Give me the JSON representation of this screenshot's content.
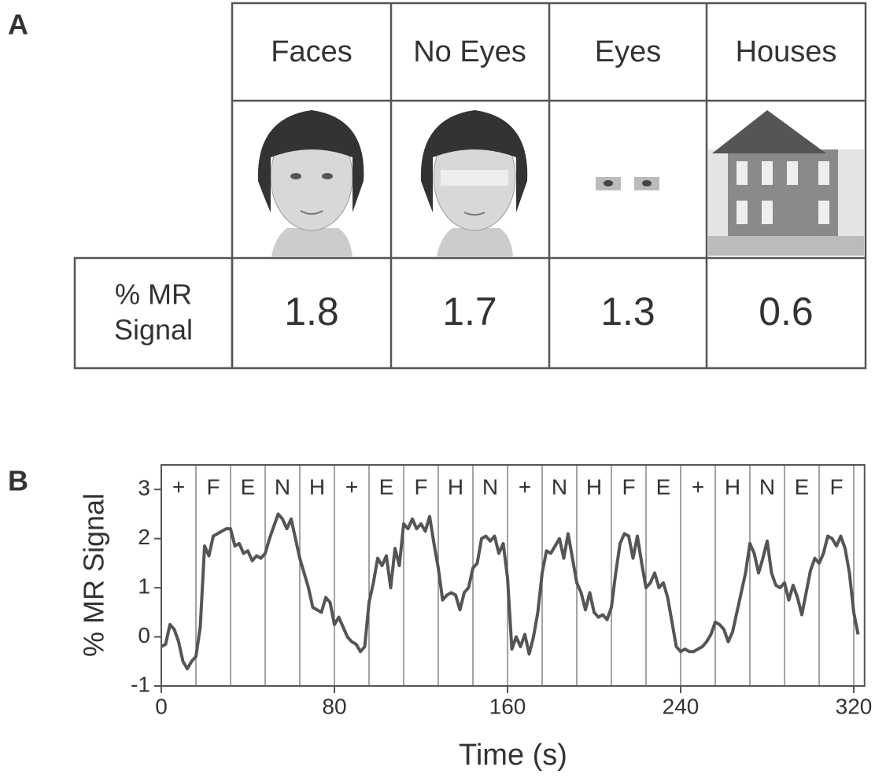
{
  "panel_a": {
    "label": "A",
    "columns": [
      "Faces",
      "No Eyes",
      "Eyes",
      "Houses"
    ],
    "row_label": [
      "% MR",
      "Signal"
    ],
    "values": [
      "1.8",
      "1.7",
      "1.3",
      "0.6"
    ]
  },
  "chart_data": {
    "type": "line",
    "label": "B",
    "xlabel": "Time (s)",
    "ylabel": "% MR Signal",
    "xlim": [
      0,
      325
    ],
    "ylim": [
      -1,
      3.5
    ],
    "xticks": [
      0,
      80,
      160,
      240,
      320
    ],
    "yticks": [
      3,
      2,
      1,
      0,
      -1
    ],
    "block_labels": [
      "+",
      "F",
      "E",
      "N",
      "H",
      "+",
      "E",
      "F",
      "H",
      "N",
      "+",
      "N",
      "H",
      "F",
      "E",
      "+",
      "H",
      "N",
      "E",
      "F"
    ],
    "block_edges": [
      16,
      32,
      48,
      64,
      80,
      96,
      112,
      128,
      144,
      160,
      176,
      192,
      208,
      224,
      240,
      256,
      272,
      288,
      304,
      320
    ],
    "x": [
      0,
      2,
      4,
      6,
      8,
      10,
      12,
      14,
      16,
      18,
      20,
      22,
      24,
      26,
      28,
      30,
      32,
      34,
      36,
      38,
      40,
      42,
      44,
      46,
      48,
      50,
      52,
      54,
      56,
      58,
      60,
      62,
      64,
      66,
      68,
      70,
      72,
      74,
      76,
      78,
      80,
      82,
      84,
      86,
      88,
      90,
      92,
      94,
      96,
      98,
      100,
      102,
      104,
      106,
      108,
      110,
      112,
      114,
      116,
      118,
      120,
      122,
      124,
      126,
      128,
      130,
      132,
      134,
      136,
      138,
      140,
      142,
      144,
      146,
      148,
      150,
      152,
      154,
      156,
      158,
      160,
      162,
      164,
      166,
      168,
      170,
      172,
      174,
      176,
      178,
      180,
      182,
      184,
      186,
      188,
      190,
      192,
      194,
      196,
      198,
      200,
      202,
      204,
      206,
      208,
      210,
      212,
      214,
      216,
      218,
      220,
      222,
      224,
      226,
      228,
      230,
      232,
      234,
      236,
      238,
      240,
      242,
      244,
      246,
      248,
      250,
      252,
      254,
      256,
      258,
      260,
      262,
      264,
      266,
      268,
      270,
      272,
      274,
      276,
      278,
      280,
      282,
      284,
      286,
      288,
      290,
      292,
      294,
      296,
      298,
      300,
      302,
      304,
      306,
      308,
      310,
      312,
      314,
      316,
      318,
      320,
      322
    ],
    "series": [
      {
        "color": "#555555",
        "values": [
          -0.2,
          -0.15,
          0.25,
          0.15,
          -0.1,
          -0.5,
          -0.65,
          -0.5,
          -0.4,
          0.2,
          1.85,
          1.65,
          2.05,
          2.1,
          2.15,
          2.2,
          2.2,
          1.85,
          1.9,
          1.7,
          1.75,
          1.55,
          1.65,
          1.6,
          1.7,
          2.0,
          2.25,
          2.5,
          2.4,
          2.2,
          2.4,
          2.0,
          1.6,
          1.3,
          1.0,
          0.6,
          0.55,
          0.5,
          0.8,
          0.7,
          0.25,
          0.4,
          0.2,
          0.0,
          -0.1,
          -0.15,
          -0.3,
          -0.2,
          0.7,
          1.1,
          1.6,
          1.45,
          1.65,
          1.0,
          1.8,
          1.45,
          2.3,
          2.2,
          2.4,
          2.2,
          2.3,
          2.15,
          2.45,
          1.9,
          1.4,
          0.75,
          0.85,
          0.9,
          0.85,
          0.55,
          0.9,
          1.0,
          1.4,
          1.5,
          2.0,
          2.05,
          1.95,
          2.05,
          1.7,
          1.9,
          1.2,
          -0.25,
          0.0,
          -0.2,
          0.05,
          -0.35,
          0.0,
          0.5,
          1.3,
          1.75,
          1.7,
          1.85,
          2.0,
          1.6,
          2.1,
          1.6,
          1.1,
          0.9,
          0.55,
          0.9,
          0.5,
          0.4,
          0.45,
          0.35,
          0.6,
          1.3,
          1.9,
          2.1,
          2.05,
          1.6,
          2.05,
          1.5,
          1.0,
          1.1,
          1.3,
          1.0,
          1.1,
          0.8,
          0.3,
          -0.2,
          -0.3,
          -0.25,
          -0.3,
          -0.3,
          -0.25,
          -0.2,
          -0.1,
          0.05,
          0.3,
          0.25,
          0.15,
          -0.1,
          0.1,
          0.5,
          0.9,
          1.3,
          1.9,
          1.7,
          1.3,
          1.6,
          1.95,
          1.3,
          1.05,
          1.0,
          1.1,
          0.75,
          1.05,
          0.8,
          0.45,
          0.9,
          1.35,
          1.6,
          1.5,
          1.7,
          2.05,
          2.0,
          1.85,
          2.05,
          1.8,
          1.3,
          0.5,
          0.05
        ]
      }
    ]
  }
}
